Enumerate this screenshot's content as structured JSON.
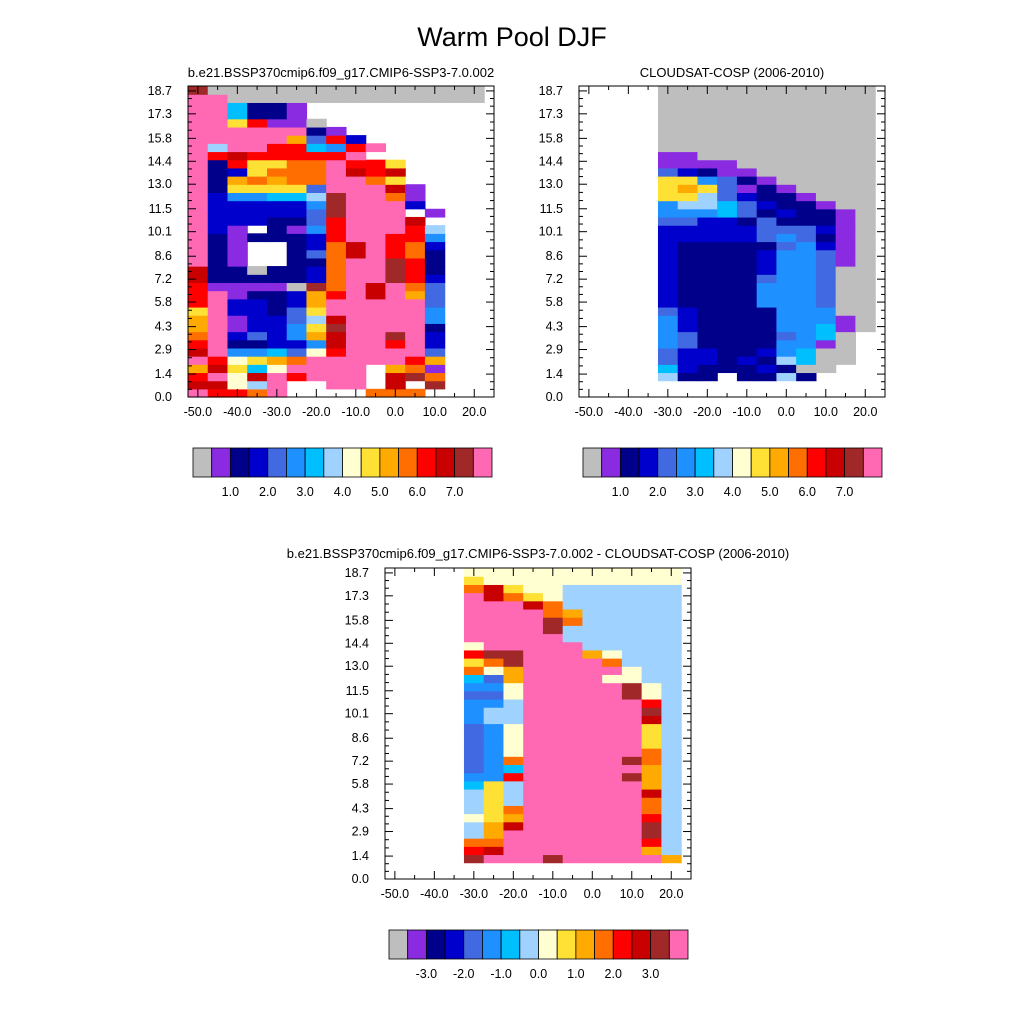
{
  "title": "Warm Pool DJF",
  "palette": [
    "#bebebe",
    "#8a2be2",
    "#00008b",
    "#0000cd",
    "#4169e1",
    "#1e90ff",
    "#00bfff",
    "#a0d2ff",
    "#ffffd1",
    "#ffe135",
    "#ffaa00",
    "#ff6e00",
    "#ff0000",
    "#c80000",
    "#a02828",
    "#ff69b4"
  ],
  "chart_data": [
    {
      "type": "heatmap",
      "title": "b.e21.BSSP370cmip6.f09_g17.CMIP6-SSP3-7.0.002",
      "xlim": [
        -52.5,
        25
      ],
      "ylim": [
        0,
        19
      ],
      "xticks": [
        "-50.0",
        "-40.0",
        "-30.0",
        "-20.0",
        "-10.0",
        "0.0",
        "10.0",
        "20.0"
      ],
      "yticks": [
        "0.0",
        "1.4",
        "2.9",
        "4.3",
        "5.8",
        "7.2",
        "8.6",
        "10.1",
        "11.5",
        "13.0",
        "14.4",
        "15.8",
        "17.3",
        "18.7"
      ],
      "colorbar_labels": [
        "1.0",
        "2.0",
        "3.0",
        "4.0",
        "5.0",
        "6.0",
        "7.0"
      ],
      "col_x": [
        -52.5,
        -47.5,
        -42.5,
        -37.5,
        -32.5,
        -27.5,
        -22.5,
        -17.5,
        -12.5,
        -7.5,
        -2.5,
        2.5,
        7.5,
        12.5,
        17.5
      ],
      "row_y": [
        0,
        0.5,
        1,
        1.5,
        2,
        2.5,
        3,
        3.5,
        4,
        4.5,
        5,
        5.5,
        6,
        6.5,
        7,
        7.5,
        8,
        8.5,
        9,
        9.5,
        10,
        10.5,
        11,
        11.5,
        12,
        12.5,
        13,
        13.5,
        14,
        14.5,
        15,
        15.5,
        16,
        16.5,
        17,
        17.5,
        18,
        18.5,
        19
      ],
      "grid": [
        "PMMLP    LLL",
        "NNIHP  PP N O",
        "MPINPMPPP NOL",
        "KNJGIPPPP KLB",
        "PMIJKLPPPPPMK",
        "NPFFGEIMPPPPE",
        "MPCCDDFNPPMPD",
        "LPDEDFKNPPOPD",
        "KPBDDFJOPPPPC",
        "KPBDDEHNPPPPF",
        "JPDDCEJPPPPPF",
        "MPDDCDKPPPPPE",
        "MPBCCDKMPNPKE",
        "MBBBBAOLPNPLE",
        "NCCCCCDLPPOMD",
        "NCCACCDLPPOMC",
        "PCB  CCLPPOMC",
        "PCB  CELNPMLC",
        "PCB  CDLNPMLD",
        "PCBCCCDMPPMMF",
        "PDB CBFMPPPMH",
        "PDDDCCEMPPPN",
        "PDDDDDEOPPP B",
        "PDDDDDFOPPPD",
        "PDFFGGHOPPLB",
        "PCJJJJEPPPNB",
        "PCKLKLLPPLJ",
        "PCDJLLLPNMN",
        "PCMJJLLPMMJ",
        "PMNMMMMMP",
        "PHPPMMGFMP",
        "PPPPPKEMD",
        "PPPPPPCB",
        "PPJMBBA",
        "PPGCCB",
        "PPGCCB",
        "PPAAAAAAAAAAAAA",
        "OAAAAAAAAAAAAAA"
      ]
    },
    {
      "type": "heatmap",
      "title": "CLOUDSAT-COSP (2006-2010)",
      "xlim": [
        -52.5,
        25
      ],
      "ylim": [
        0,
        19
      ],
      "xticks": [
        "-50.0",
        "-40.0",
        "-30.0",
        "-20.0",
        "-10.0",
        "0.0",
        "10.0",
        "20.0"
      ],
      "yticks": [
        "0.0",
        "1.4",
        "2.9",
        "4.3",
        "5.8",
        "7.2",
        "8.6",
        "10.1",
        "11.5",
        "13.0",
        "14.4",
        "15.8",
        "17.3",
        "18.7"
      ],
      "colorbar_labels": [
        "1.0",
        "2.0",
        "3.0",
        "4.0",
        "5.0",
        "6.0",
        "7.0"
      ],
      "col_x": [
        -52.5,
        -47.5,
        -42.5,
        -37.5,
        -32.5,
        -27.5,
        -22.5,
        -17.5,
        -12.5,
        -7.5,
        -2.5,
        2.5,
        7.5,
        12.5,
        17.5
      ],
      "row_y": [
        0,
        0.5,
        1,
        1.5,
        2,
        2.5,
        3,
        3.5,
        4,
        4.5,
        5,
        5.5,
        6,
        6.5,
        7,
        7.5,
        8,
        8.5,
        9,
        9.5,
        10,
        10.5,
        11,
        11.5,
        12,
        12.5,
        13,
        13.5,
        14,
        14.5,
        15,
        15.5,
        16,
        16.5,
        17,
        17.5,
        18,
        18.5,
        19
      ],
      "grid": [
        "",
        "",
        "    HCC CCHC",
        "    GDCCCDCAA",
        "    EDDCDCHGAA",
        "    EDDCCDFGAA",
        "    FECCCCFFBA",
        "    FECCCCEFGA",
        "    FDCCCCFFGBA",
        "    FDCCCCFFFBA",
        "    EDCCCCFFFAA",
        "    DCCCCFFFEAA",
        "    DCCCCFFFEAA",
        "    DCCCCFFFEAA",
        "    DCCCCEFFEAA",
        "    DCCCCDFFEAA",
        "    DCCCCDFFEBA",
        "    DCCCCDFFEBA",
        "    DCCCCCEFDBA",
        "    DDDDDEFECBA",
        "    DDDDDEEEDBA",
        "    EEDDCECCCBA",
        "    FFFGECDCCBA",
        "    FHHGEDCCBAA",
        "    JJHEDCCBAAA",
        "    JKJEBCBAAAA",
        "    JJFECBAAAAA",
        "    EDCBBAAAAAA",
        "    BBBBAAAAAAA",
        "    BBAAAAAAAAA",
        "    AAAAAAAAAAA",
        "    AAAAAAAAAAA",
        "    AAAAAAAAAAA",
        "    AAAAAAAAAAA",
        "    AAAAAAAAAAA",
        "    AAAAAAAAAAA",
        "    AAAAAAAAAAA",
        "    AAAAAAAAAAA"
      ]
    },
    {
      "type": "heatmap",
      "title": "b.e21.BSSP370cmip6.f09_g17.CMIP6-SSP3-7.0.002 - CLOUDSAT-COSP (2006-2010)",
      "xlim": [
        -52.5,
        25
      ],
      "ylim": [
        0,
        19
      ],
      "xticks": [
        "-50.0",
        "-40.0",
        "-30.0",
        "-20.0",
        "-10.0",
        "0.0",
        "10.0",
        "20.0"
      ],
      "yticks": [
        "0.0",
        "1.4",
        "2.9",
        "4.3",
        "5.8",
        "7.2",
        "8.6",
        "10.1",
        "11.5",
        "13.0",
        "14.4",
        "15.8",
        "17.3",
        "18.7"
      ],
      "colorbar_labels": [
        "-3.0",
        "-2.0",
        "-1.0",
        "0.0",
        "1.0",
        "2.0",
        "3.0"
      ],
      "col_x": [
        -52.5,
        -47.5,
        -42.5,
        -37.5,
        -32.5,
        -27.5,
        -22.5,
        -17.5,
        -12.5,
        -7.5,
        -2.5,
        2.5,
        7.5,
        12.5,
        17.5
      ],
      "row_y": [
        0,
        0.5,
        1,
        1.5,
        2,
        2.5,
        3,
        3.5,
        4,
        4.5,
        5,
        5.5,
        6,
        6.5,
        7,
        7.5,
        8,
        8.5,
        9,
        9.5,
        10,
        10.5,
        11,
        11.5,
        12,
        12.5,
        13,
        13.5,
        14,
        14.5,
        15,
        15.5,
        16,
        16.5,
        17,
        17.5,
        18,
        18.5,
        19
      ],
      "grid": [
        "",
        "",
        "    OPPPOPPPPPKHH",
        "    MNPPPPPPPKHH",
        "    LLPPPPPPPMHH",
        "    HKPPPPPPPOHH",
        "    HKNPPPPPPOHH",
        "    IJKPPPPPPMHH",
        "    HJLPPPPPPLHH",
        "    HJHPPPPPPLHH",
        "    HJHPPPPPPNHH",
        "    GJHPPPPPPKHH",
        "    FFMPPPPPOKHH",
        "    EFGPPPPPPKHI",
        "    EFLPPPPPOLHI",
        "    EFIPPPPPPLHI",
        "    EFIPPPPPPJHI",
        "    EFIPPPPPPJHI",
        "    EFIPPPPPPJHI",
        "    FHHPPPPPPNHI",
        "    FHHPPPPPPOHI",
        "    FFHPPPPPPMHI",
        "    EEIPPPPPOIHH",
        "    FFIPPPPPOIHH",
        "    GEKPPPPIIHHI",
        "    LIKPPPPPIHHI",
        "    JLOPPPPLHHHI",
        "    MOOPPPKIHHHI",
        "    IPPPPPHHHHHI",
        "    PPPPPHHHHHHI",
        "    PPPPOHHHHHHI",
        "    PPPPOLHHHHHI",
        "    PPPPLKHHHHHI",
        "    PPPNLHHHHHHI",
        "    PNLJIHHHHHHI",
        "    LNJIIHHHHHHI",
        "    JIIIIIIIIIII",
        "    IIIIIIIIIIII"
      ]
    }
  ]
}
